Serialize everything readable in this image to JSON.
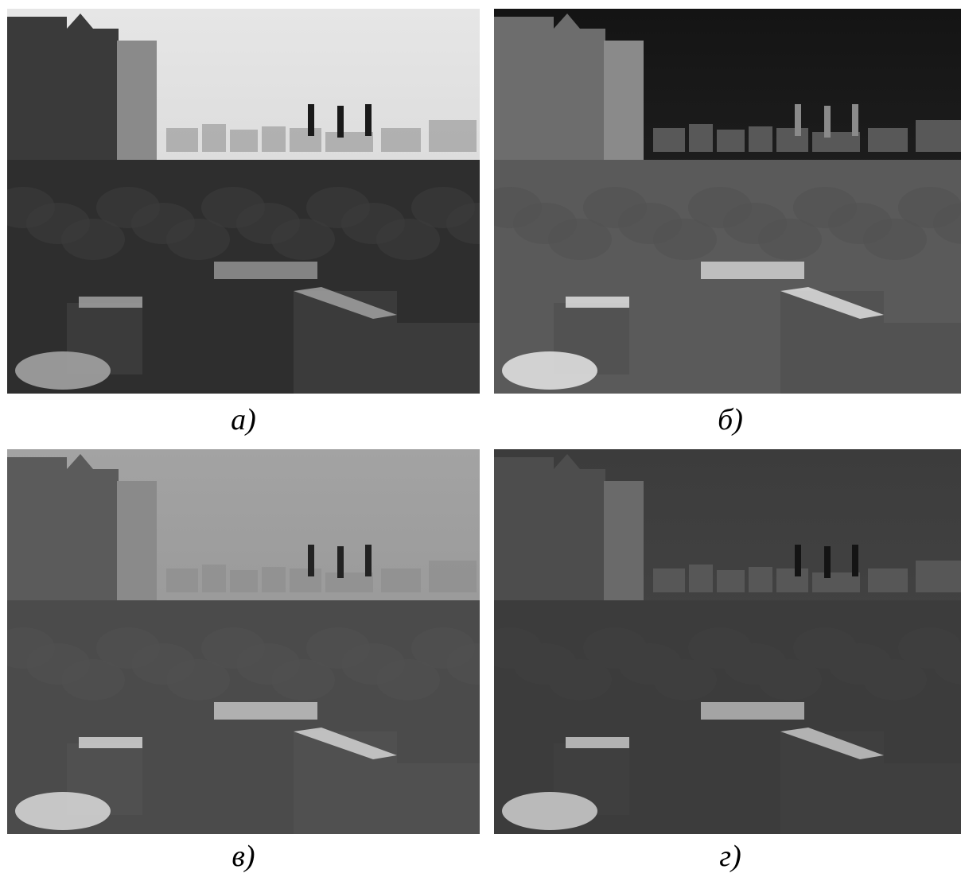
{
  "captions": {
    "a": "а)",
    "b": "б)",
    "c": "в)",
    "d": "г)"
  },
  "panels": [
    {
      "id": "a",
      "description_tone": "visible",
      "sky": "#cfcfcf",
      "sky_top": "#e6e6e6",
      "tower": "#3a3a3a",
      "tower_light": "#8a8a8a",
      "trees": "#2e2e2e",
      "ground": "#3b3b3b",
      "roof": "#a9a9a9",
      "chimney": "#1a1a1a"
    },
    {
      "id": "b",
      "description_tone": "thermal",
      "sky": "#2a2a2a",
      "sky_top": "#141414",
      "tower": "#6d6d6d",
      "tower_light": "#8a8a8a",
      "trees": "#5a5a5a",
      "ground": "#525252",
      "roof": "#e8e8e8",
      "chimney": "#8a8a8a"
    },
    {
      "id": "c",
      "description_tone": "fused-light",
      "sky": "#8e8e8e",
      "sky_top": "#a3a3a3",
      "tower": "#5b5b5b",
      "tower_light": "#8a8a8a",
      "trees": "#4b4b4b",
      "ground": "#505050",
      "roof": "#dcdcdc",
      "chimney": "#222222"
    },
    {
      "id": "d",
      "description_tone": "fused-dark",
      "sky": "#4a4a4a",
      "sky_top": "#3c3c3c",
      "tower": "#4d4d4d",
      "tower_light": "#6a6a6a",
      "trees": "#3c3c3c",
      "ground": "#3f3f3f",
      "roof": "#d0d0d0",
      "chimney": "#141414"
    }
  ]
}
